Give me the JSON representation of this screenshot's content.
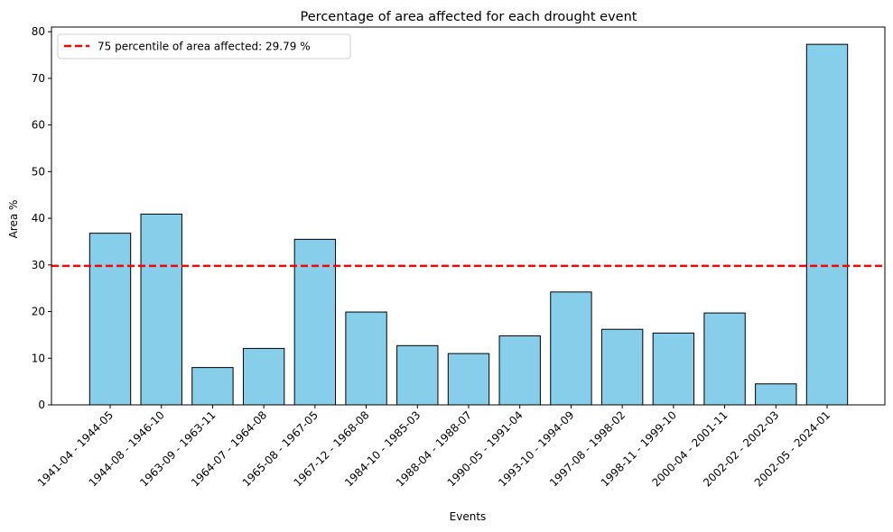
{
  "chart_data": {
    "type": "bar",
    "title": "Percentage of area affected for each drought event",
    "xlabel": "Events",
    "ylabel": "Area %",
    "ylim": [
      0,
      81
    ],
    "yticks": [
      0,
      10,
      20,
      30,
      40,
      50,
      60,
      70,
      80
    ],
    "categories": [
      "1941-04 - 1944-05",
      "1944-08 - 1946-10",
      "1963-09 - 1963-11",
      "1964-07 - 1964-08",
      "1965-08 - 1967-05",
      "1967-12 - 1968-08",
      "1984-10 - 1985-03",
      "1988-04 - 1988-07",
      "1990-05 - 1991-04",
      "1993-10 - 1994-09",
      "1997-08 - 1998-02",
      "1998-11 - 1999-10",
      "2000-04 - 2001-11",
      "2002-02 - 2002-03",
      "2002-05 - 2024-01"
    ],
    "values": [
      36.8,
      40.9,
      8.0,
      12.1,
      35.5,
      19.9,
      12.7,
      11.0,
      14.8,
      24.2,
      16.2,
      15.4,
      19.7,
      4.5,
      77.3
    ],
    "bar_color": "#87ceeb",
    "bar_edge_color": "#000000",
    "reference_line": {
      "value": 29.79,
      "label": "75 percentile of area affected: 29.79 %",
      "color": "#ff0000",
      "style": "dashed"
    },
    "legend_position": "top-left",
    "grid": false
  }
}
